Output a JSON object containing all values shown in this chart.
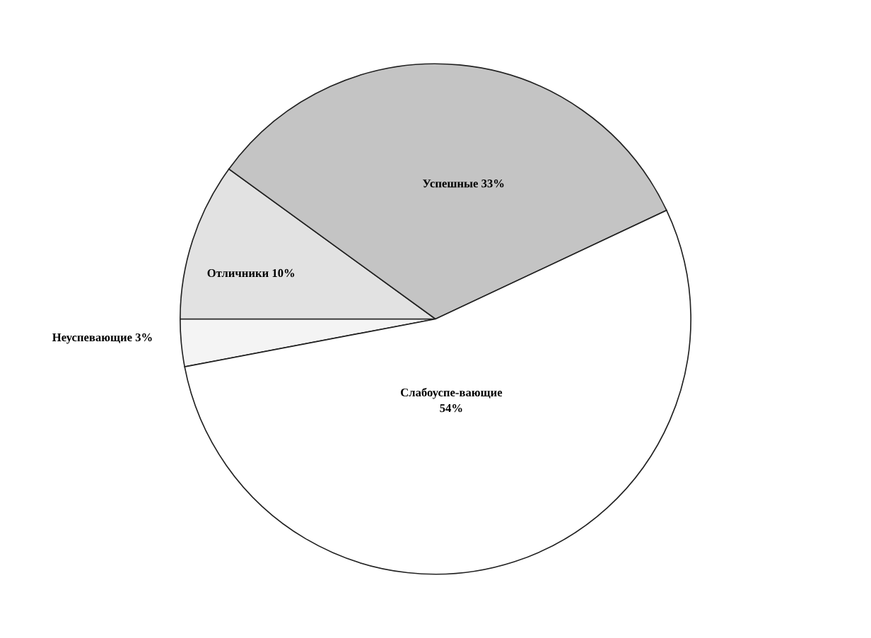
{
  "chart_data": {
    "type": "pie",
    "categories": [
      "Неуспевающие",
      "Отличники",
      "Успешные",
      "Слабоуспе-вающие"
    ],
    "values": [
      3,
      10,
      33,
      54
    ],
    "value_labels": [
      "3%",
      "10%",
      "33%",
      "54%"
    ],
    "colors": [
      "#f4f4f4",
      "#e2e2e2",
      "#c4c4c4",
      "#ffffff"
    ]
  }
}
